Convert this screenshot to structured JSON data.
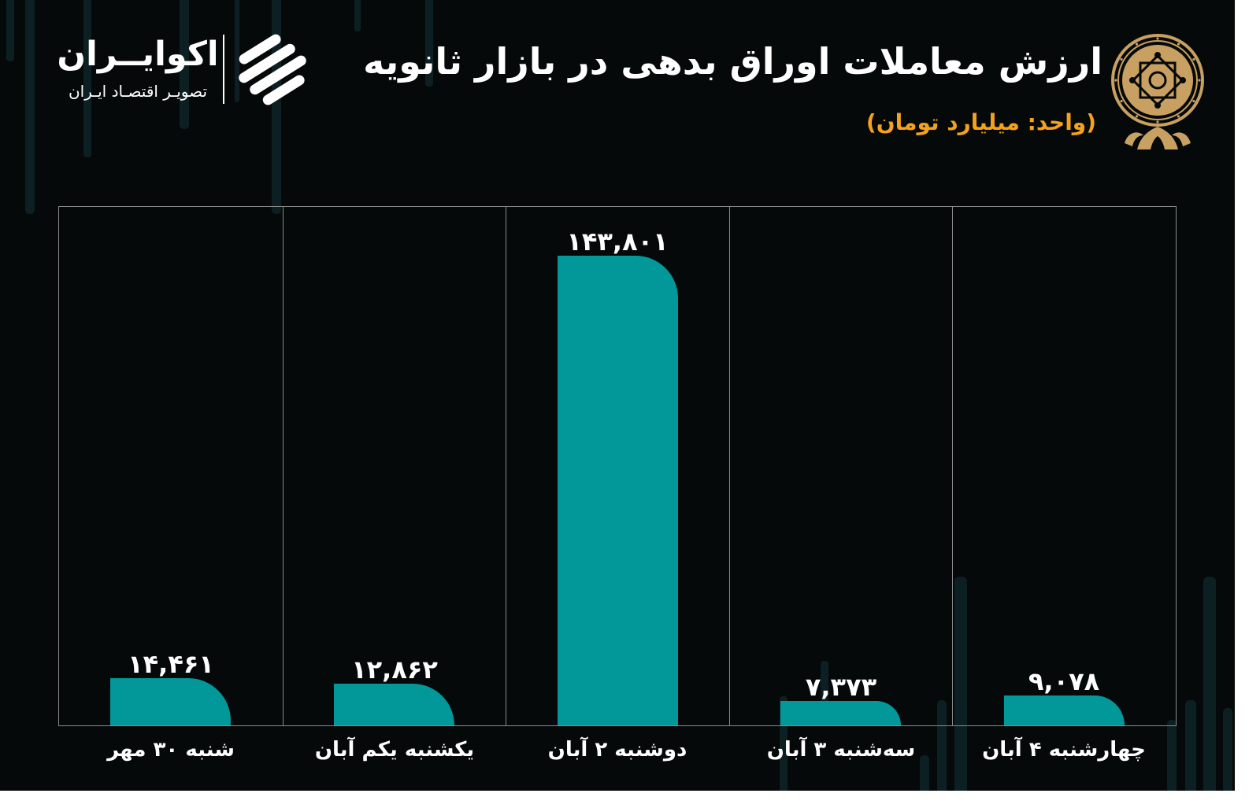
{
  "brand": {
    "name": "اکوایــران",
    "tagline": "تصویـر اقتصـاد ایـران"
  },
  "icons": {
    "brand_logo": "ecoiran-logo-icon",
    "emblem": "stock-exchange-emblem-icon"
  },
  "colors": {
    "background": "#060909",
    "bar": "#02989a",
    "accent": "#f4a21c",
    "emblem": "#c8a061",
    "grid": "#8a8a8a",
    "text": "#ffffff",
    "candle": "#0c2023"
  },
  "chart_data": {
    "type": "bar",
    "title": "ارزش معاملات اوراق بدهی در بازار ثانویه",
    "subtitle": "(واحد: میلیارد تومان)",
    "categories": [
      "شنبه ۳۰ مهر",
      "یکشنبه یکم آبان",
      "دوشنبه ۲ آبان",
      "سه‌شنبه ۳ آبان",
      "چهارشنبه ۴ آبان"
    ],
    "values": [
      14461,
      12862,
      143801,
      7373,
      9078
    ],
    "data_labels": [
      "۱۴,۴۶۱",
      "۱۲,۸۶۲",
      "۱۴۳,۸۰۱",
      "۷,۳۷۳",
      "۹,۰۷۸"
    ],
    "grid": true,
    "legend": false
  }
}
